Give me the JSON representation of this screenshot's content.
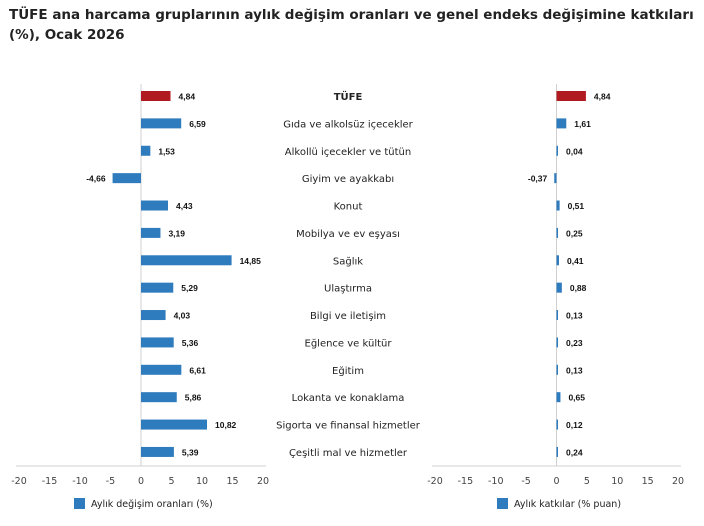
{
  "title": "TÜFE ana harcama gruplarının aylık değişim oranları ve genel endeks değişimine katkıları (%), Ocak 2026",
  "colors": {
    "highlight": "#b01b22",
    "bar": "#2e7bbd",
    "axis": "#d0d0d0"
  },
  "chart_data": [
    {
      "type": "bar",
      "orientation": "horizontal",
      "categories": [
        "TÜFE",
        "Gıda ve alkolsüz içecekler",
        "Alkollü içecekler ve tütün",
        "Giyim ve ayakkabı",
        "Konut",
        "Mobilya ve ev eşyası",
        "Sağlık",
        "Ulaştırma",
        "Bilgi ve iletişim",
        "Eğlence ve kültür",
        "Eğitim",
        "Lokanta ve konaklama",
        "Sigorta ve finansal hizmetler",
        "Çeşitli mal ve hizmetler"
      ],
      "series": [
        {
          "name": "Aylık değişim oranları (%)",
          "values": [
            4.84,
            6.59,
            1.53,
            -4.66,
            4.43,
            3.19,
            14.85,
            5.29,
            4.03,
            5.36,
            6.61,
            5.86,
            10.82,
            5.39
          ]
        }
      ],
      "value_labels": [
        "4,84",
        "6,59",
        "1,53",
        "-4,66",
        "4,43",
        "3,19",
        "14,85",
        "5,29",
        "4,03",
        "5,36",
        "6,61",
        "5,86",
        "10,82",
        "5,39"
      ],
      "xlim": [
        -20,
        20
      ],
      "xticks": [
        "-20",
        "-15",
        "-10",
        "-5",
        "0",
        "5",
        "10",
        "15",
        "20"
      ],
      "legend": "bottom",
      "grid": false
    },
    {
      "type": "bar",
      "orientation": "horizontal",
      "series": [
        {
          "name": "Aylık katkılar (% puan)",
          "values": [
            4.84,
            1.61,
            0.04,
            -0.37,
            0.51,
            0.25,
            0.41,
            0.88,
            0.13,
            0.23,
            0.13,
            0.65,
            0.12,
            0.24
          ]
        }
      ],
      "value_labels": [
        "4,84",
        "1,61",
        "0,04",
        "-0,37",
        "0,51",
        "0,25",
        "0,41",
        "0,88",
        "0,13",
        "0,23",
        "0,13",
        "0,65",
        "0,12",
        "0,24"
      ],
      "xlim": [
        -20,
        20
      ],
      "xticks": [
        "-20",
        "-15",
        "-10",
        "-5",
        "0",
        "5",
        "10",
        "15",
        "20"
      ],
      "legend": "bottom",
      "grid": false
    }
  ]
}
